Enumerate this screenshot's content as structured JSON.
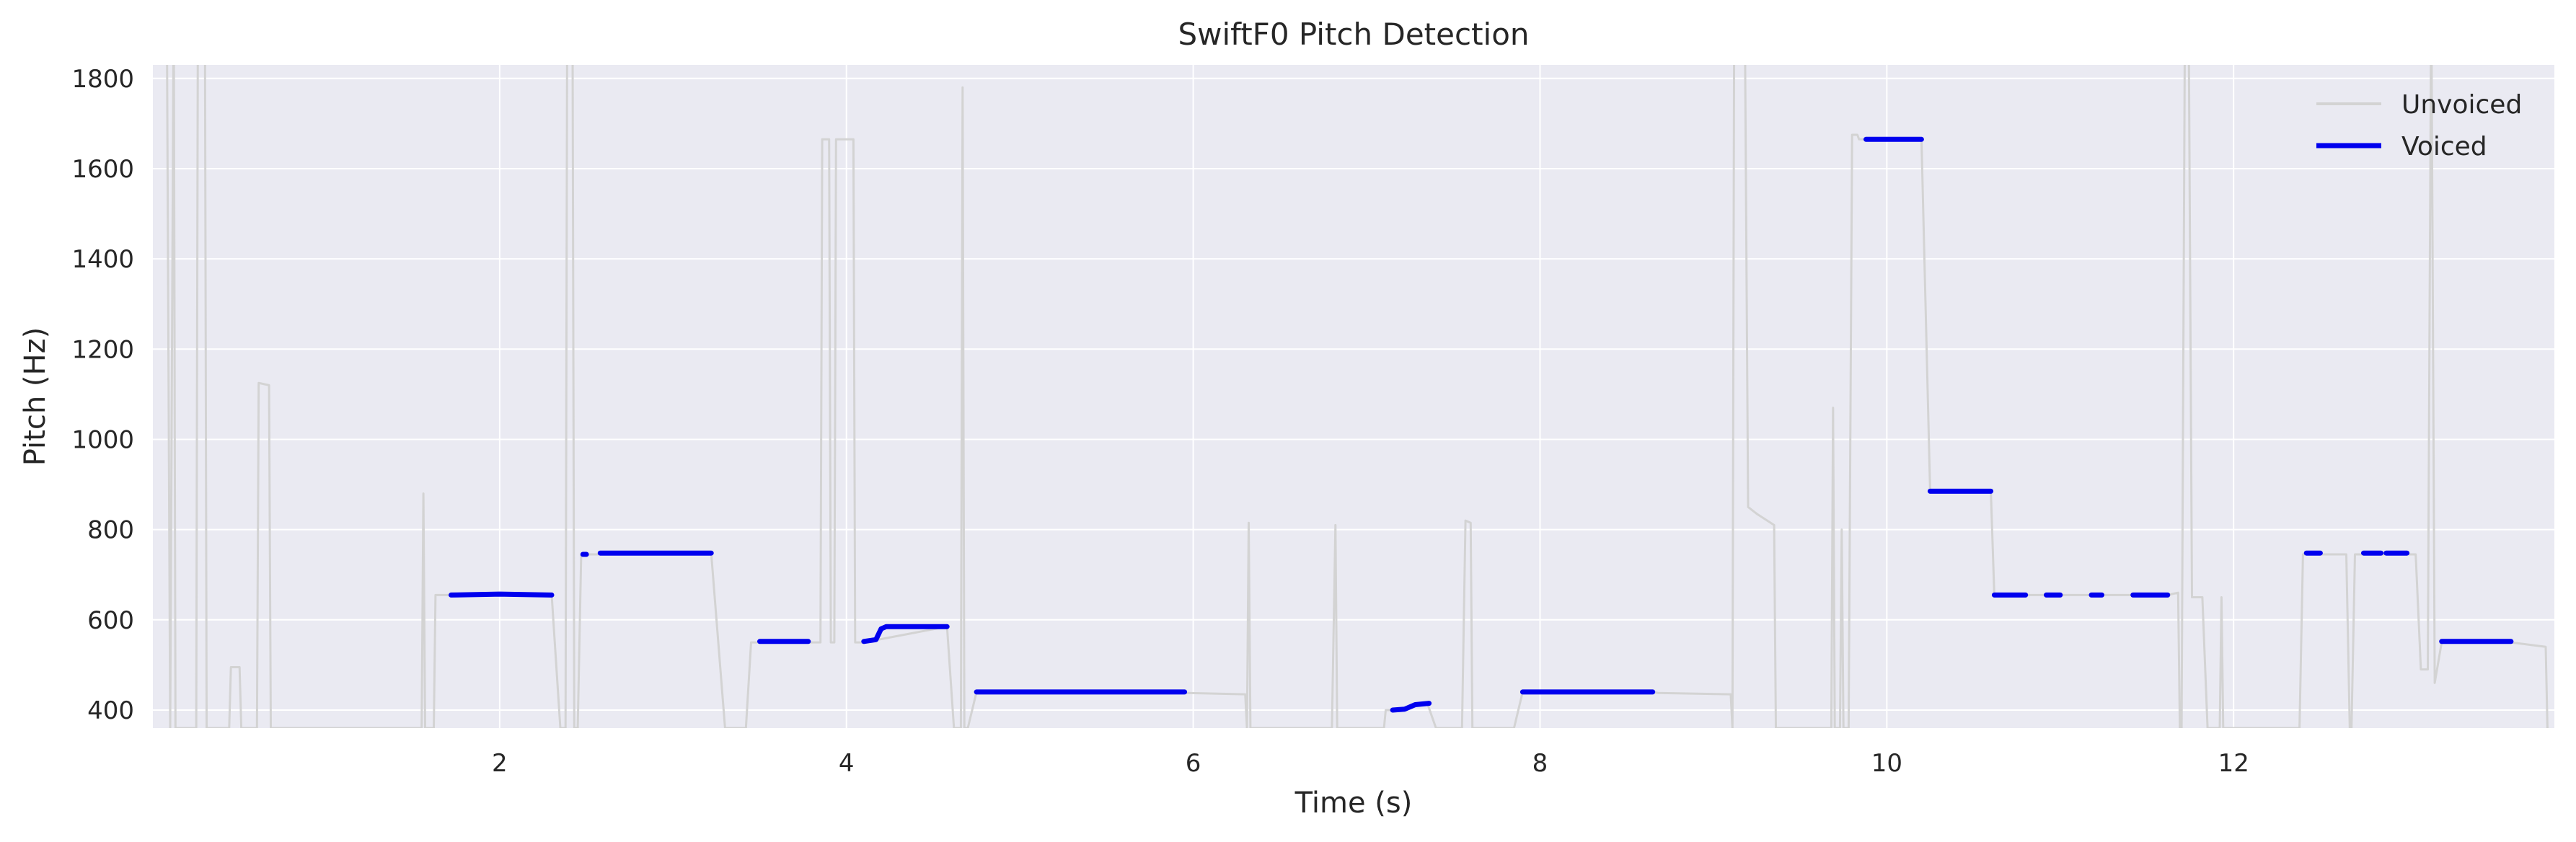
{
  "chart_data": {
    "type": "line",
    "title": "SwiftF0 Pitch Detection",
    "xlabel": "Time (s)",
    "ylabel": "Pitch (Hz)",
    "xlim": [
      0.0,
      13.85
    ],
    "ylim": [
      360,
      1830
    ],
    "xticks": [
      2,
      4,
      6,
      8,
      10,
      12
    ],
    "yticks": [
      400,
      600,
      800,
      1000,
      1200,
      1400,
      1600,
      1800
    ],
    "grid": true,
    "legend_position": "top-right",
    "colors": {
      "background": "#eaeaf2",
      "grid": "#ffffff",
      "unvoiced": "#d3d3d3",
      "voiced": "#0000ee"
    },
    "series": [
      {
        "name": "Unvoiced",
        "style": "thin-gray",
        "points": [
          [
            0.08,
            2000
          ],
          [
            0.1,
            360
          ],
          [
            0.12,
            2000
          ],
          [
            0.13,
            360
          ],
          [
            0.25,
            360
          ],
          [
            0.26,
            2000
          ],
          [
            0.3,
            2000
          ],
          [
            0.31,
            360
          ],
          [
            0.44,
            360
          ],
          [
            0.45,
            495
          ],
          [
            0.5,
            495
          ],
          [
            0.51,
            360
          ],
          [
            0.6,
            360
          ],
          [
            0.61,
            1125
          ],
          [
            0.67,
            1120
          ],
          [
            0.68,
            360
          ],
          [
            1.55,
            360
          ],
          [
            1.56,
            880
          ],
          [
            1.57,
            360
          ],
          [
            1.62,
            360
          ],
          [
            1.63,
            655
          ],
          [
            1.72,
            655
          ],
          [
            2.3,
            655
          ],
          [
            2.35,
            360
          ],
          [
            2.38,
            360
          ],
          [
            2.39,
            2000
          ],
          [
            2.42,
            2000
          ],
          [
            2.43,
            360
          ],
          [
            2.45,
            360
          ],
          [
            2.47,
            745
          ],
          [
            2.58,
            745
          ],
          [
            3.22,
            748
          ],
          [
            3.3,
            360
          ],
          [
            3.42,
            360
          ],
          [
            3.45,
            550
          ],
          [
            3.5,
            550
          ],
          [
            3.78,
            550
          ],
          [
            3.85,
            550
          ],
          [
            3.86,
            1665
          ],
          [
            3.9,
            1665
          ],
          [
            3.91,
            550
          ],
          [
            3.93,
            550
          ],
          [
            3.94,
            1665
          ],
          [
            4.04,
            1665
          ],
          [
            4.05,
            550
          ],
          [
            4.1,
            550
          ],
          [
            4.58,
            585
          ],
          [
            4.62,
            360
          ],
          [
            4.66,
            360
          ],
          [
            4.67,
            1780
          ],
          [
            4.68,
            360
          ],
          [
            4.7,
            360
          ],
          [
            4.75,
            440
          ],
          [
            5.95,
            438
          ],
          [
            6.3,
            435
          ],
          [
            6.31,
            360
          ],
          [
            6.32,
            815
          ],
          [
            6.33,
            360
          ],
          [
            6.8,
            360
          ],
          [
            6.82,
            810
          ],
          [
            6.83,
            360
          ],
          [
            7.1,
            360
          ],
          [
            7.11,
            400
          ],
          [
            7.15,
            400
          ],
          [
            7.35,
            415
          ],
          [
            7.4,
            360
          ],
          [
            7.55,
            360
          ],
          [
            7.57,
            820
          ],
          [
            7.6,
            815
          ],
          [
            7.61,
            360
          ],
          [
            7.85,
            360
          ],
          [
            7.9,
            440
          ],
          [
            8.65,
            440
          ],
          [
            8.68,
            438
          ],
          [
            9.1,
            435
          ],
          [
            9.11,
            360
          ],
          [
            9.12,
            2000
          ],
          [
            9.18,
            2000
          ],
          [
            9.2,
            850
          ],
          [
            9.25,
            835
          ],
          [
            9.35,
            810
          ],
          [
            9.36,
            360
          ],
          [
            9.68,
            360
          ],
          [
            9.69,
            1070
          ],
          [
            9.7,
            360
          ],
          [
            9.73,
            360
          ],
          [
            9.74,
            800
          ],
          [
            9.75,
            360
          ],
          [
            9.78,
            360
          ],
          [
            9.8,
            1675
          ],
          [
            9.83,
            1675
          ],
          [
            9.84,
            1665
          ],
          [
            9.88,
            1665
          ],
          [
            10.2,
            1665
          ],
          [
            10.25,
            885
          ],
          [
            10.6,
            885
          ],
          [
            10.62,
            655
          ],
          [
            11.62,
            655
          ],
          [
            11.68,
            660
          ],
          [
            11.69,
            360
          ],
          [
            11.7,
            360
          ],
          [
            11.72,
            2000
          ],
          [
            11.74,
            2000
          ],
          [
            11.76,
            650
          ],
          [
            11.82,
            650
          ],
          [
            11.85,
            360
          ],
          [
            11.92,
            360
          ],
          [
            11.93,
            650
          ],
          [
            11.94,
            360
          ],
          [
            12.38,
            360
          ],
          [
            12.4,
            745
          ],
          [
            12.65,
            745
          ],
          [
            12.67,
            360
          ],
          [
            12.68,
            360
          ],
          [
            12.7,
            745
          ],
          [
            13.05,
            745
          ],
          [
            13.08,
            490
          ],
          [
            13.12,
            490
          ],
          [
            13.14,
            2000
          ],
          [
            13.16,
            460
          ],
          [
            13.2,
            550
          ],
          [
            13.6,
            550
          ],
          [
            13.8,
            540
          ],
          [
            13.81,
            360
          ]
        ]
      },
      {
        "name": "Voiced",
        "style": "thick-blue",
        "segments": [
          [
            [
              1.72,
              655
            ],
            [
              2.0,
              657
            ],
            [
              2.3,
              655
            ]
          ],
          [
            [
              2.48,
              745
            ],
            [
              2.5,
              745
            ]
          ],
          [
            [
              2.58,
              748
            ],
            [
              3.22,
              748
            ]
          ],
          [
            [
              3.5,
              552
            ],
            [
              3.78,
              552
            ]
          ],
          [
            [
              4.1,
              552
            ],
            [
              4.17,
              556
            ],
            [
              4.2,
              580
            ],
            [
              4.23,
              585
            ],
            [
              4.58,
              585
            ]
          ],
          [
            [
              4.75,
              440
            ],
            [
              5.95,
              440
            ]
          ],
          [
            [
              7.15,
              400
            ],
            [
              7.22,
              402
            ],
            [
              7.28,
              412
            ],
            [
              7.36,
              415
            ]
          ],
          [
            [
              7.9,
              440
            ],
            [
              8.65,
              440
            ]
          ],
          [
            [
              9.88,
              1665
            ],
            [
              10.2,
              1665
            ]
          ],
          [
            [
              10.25,
              885
            ],
            [
              10.6,
              885
            ]
          ],
          [
            [
              10.62,
              655
            ],
            [
              10.8,
              655
            ]
          ],
          [
            [
              10.92,
              655
            ],
            [
              11.0,
              655
            ]
          ],
          [
            [
              11.18,
              655
            ],
            [
              11.24,
              655
            ]
          ],
          [
            [
              11.42,
              655
            ],
            [
              11.62,
              655
            ]
          ],
          [
            [
              12.42,
              748
            ],
            [
              12.5,
              748
            ]
          ],
          [
            [
              12.75,
              748
            ],
            [
              12.85,
              748
            ]
          ],
          [
            [
              12.88,
              748
            ],
            [
              13.0,
              748
            ]
          ],
          [
            [
              13.2,
              552
            ],
            [
              13.6,
              552
            ]
          ]
        ]
      }
    ]
  }
}
